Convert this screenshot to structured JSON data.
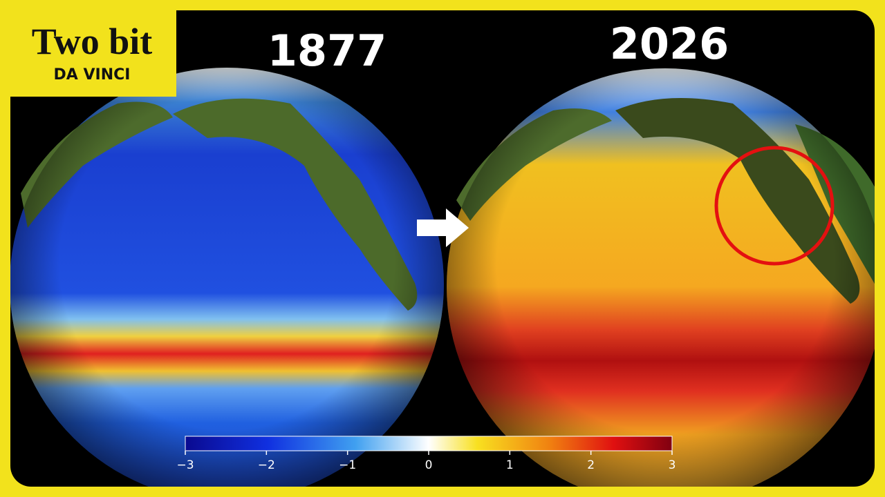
{
  "logo": {
    "line1": "Two bit",
    "line2": "DA VINCI"
  },
  "panels": [
    {
      "year": "1877"
    },
    {
      "year": "2026"
    }
  ],
  "colorbar": {
    "lim": [
      -3,
      3
    ],
    "ticks": [
      {
        "value": -3,
        "label": "−3"
      },
      {
        "value": -2,
        "label": "−2"
      },
      {
        "value": -1,
        "label": "−1"
      },
      0,
      1,
      2,
      3
    ]
  }
}
